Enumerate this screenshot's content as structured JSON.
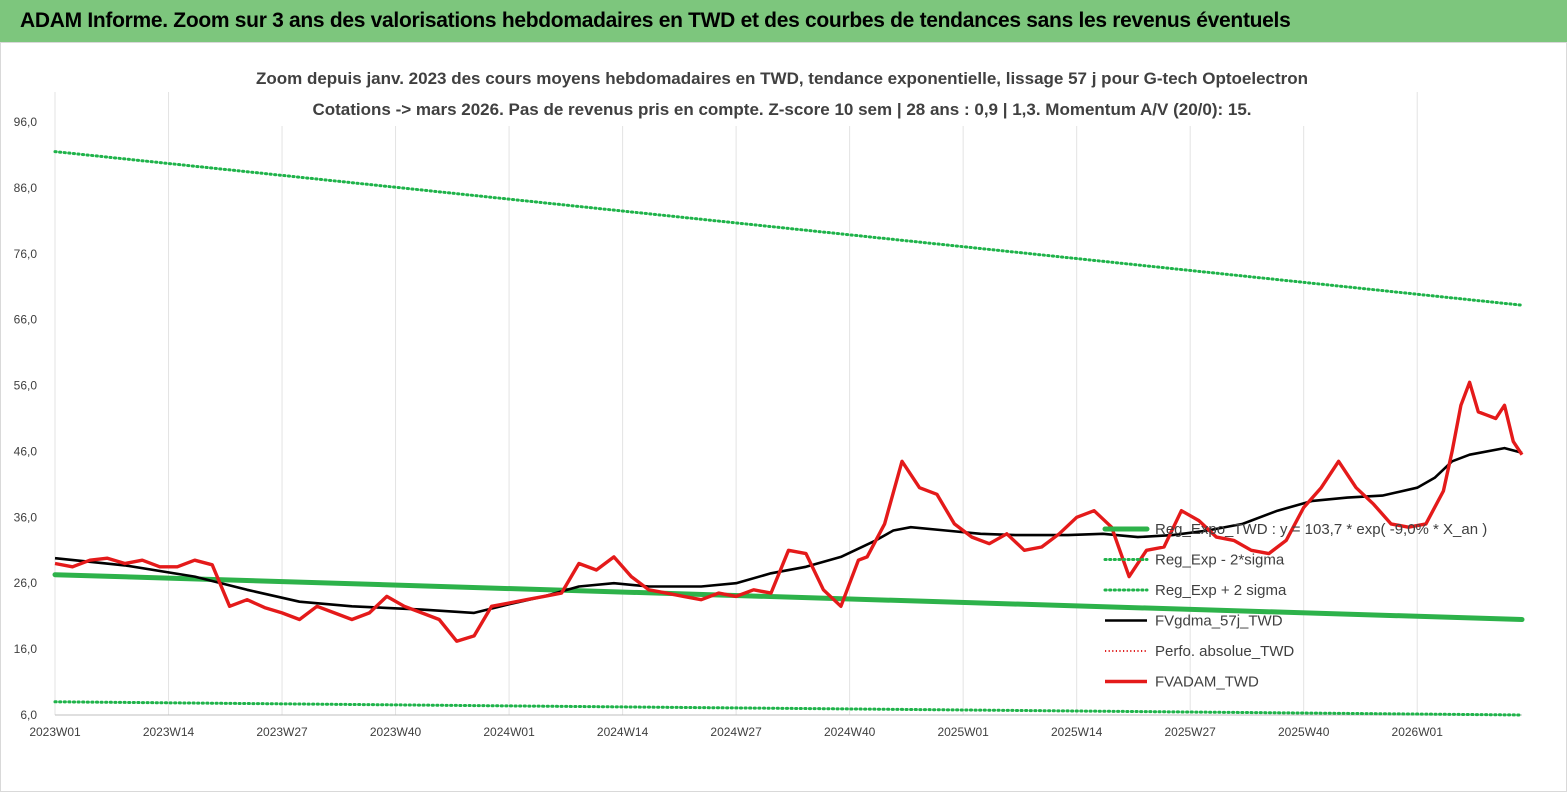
{
  "banner": {
    "title": "ADAM Informe. Zoom sur 3 ans des valorisations hebdomadaires en TWD et des courbes de tendances sans les revenus éventuels"
  },
  "colors": {
    "banner_bg": "#7dc67d",
    "trend": "#2db24a",
    "sigma_dotted": "#1fb34a",
    "fvgdma": "#000000",
    "perfo": "#e02020",
    "fvadam": "#e41a1a"
  },
  "chart_data": {
    "type": "line",
    "title": "Zoom depuis janv. 2023 des cours moyens hebdomadaires en TWD, tendance exponentielle, lissage 57 j pour G-tech Optoelectron",
    "subtitle": "Cotations -> mars 2026. Pas de revenus pris en compte. Z-score 10 sem  | 28 ans : 0,9 | 1,3. Momentum A/V (20/0): 15.",
    "x_ticks": [
      "2023W01",
      "2023W14",
      "2023W27",
      "2023W40",
      "2024W01",
      "2024W14",
      "2024W27",
      "2024W40",
      "2025W01",
      "2025W14",
      "2025W27",
      "2025W40",
      "2026W01"
    ],
    "y_ticks": [
      "96,0",
      "86,0",
      "76,0",
      "66,0",
      "56,0",
      "46,0",
      "36,0",
      "26,0",
      "16,0",
      "6,0"
    ],
    "ylim": [
      6,
      96
    ],
    "grid": "vertical",
    "legend_position": "right",
    "x_week_index_range": [
      0,
      168
    ],
    "series": [
      {
        "name": "Reg_Expo_TWD : y = 103,7 * exp( -9,0% *  X_an )",
        "style": "solid-thick",
        "points": [
          [
            0,
            27.3
          ],
          [
            168,
            20.5
          ]
        ]
      },
      {
        "name": "Reg_Exp - 2*sigma",
        "style": "dotted",
        "points": [
          [
            0,
            8.0
          ],
          [
            168,
            6.0
          ]
        ]
      },
      {
        "name": "Reg_Exp + 2 sigma",
        "style": "dotted",
        "points": [
          [
            0,
            91.5
          ],
          [
            168,
            68.2
          ]
        ]
      },
      {
        "name": "FVgdma_57j_TWD",
        "style": "solid",
        "points": [
          [
            0,
            29.8
          ],
          [
            8,
            28.7
          ],
          [
            16,
            27.0
          ],
          [
            22,
            25.0
          ],
          [
            28,
            23.2
          ],
          [
            34,
            22.5
          ],
          [
            42,
            22.0
          ],
          [
            48,
            21.5
          ],
          [
            52,
            22.8
          ],
          [
            56,
            24.0
          ],
          [
            60,
            25.5
          ],
          [
            64,
            26.0
          ],
          [
            68,
            25.5
          ],
          [
            74,
            25.5
          ],
          [
            78,
            26.0
          ],
          [
            82,
            27.5
          ],
          [
            86,
            28.5
          ],
          [
            90,
            30.0
          ],
          [
            94,
            32.5
          ],
          [
            96,
            34.0
          ],
          [
            98,
            34.5
          ],
          [
            102,
            34.0
          ],
          [
            106,
            33.5
          ],
          [
            110,
            33.3
          ],
          [
            116,
            33.3
          ],
          [
            120,
            33.5
          ],
          [
            124,
            33.0
          ],
          [
            128,
            33.3
          ],
          [
            132,
            34.0
          ],
          [
            136,
            35.0
          ],
          [
            140,
            37.0
          ],
          [
            144,
            38.5
          ],
          [
            148,
            39.0
          ],
          [
            152,
            39.3
          ],
          [
            156,
            40.5
          ],
          [
            158,
            42.0
          ],
          [
            160,
            44.5
          ],
          [
            162,
            45.5
          ],
          [
            166,
            46.5
          ],
          [
            168,
            45.8
          ]
        ]
      },
      {
        "name": "Perfo. absolue_TWD",
        "style": "dotted-red",
        "points": []
      },
      {
        "name": "FVADAM_TWD",
        "style": "solid-thick-red",
        "points": [
          [
            0,
            29.0
          ],
          [
            2,
            28.5
          ],
          [
            4,
            29.5
          ],
          [
            6,
            29.8
          ],
          [
            8,
            29.0
          ],
          [
            10,
            29.5
          ],
          [
            12,
            28.5
          ],
          [
            14,
            28.5
          ],
          [
            16,
            29.5
          ],
          [
            18,
            28.8
          ],
          [
            20,
            22.5
          ],
          [
            22,
            23.5
          ],
          [
            24,
            22.3
          ],
          [
            26,
            21.5
          ],
          [
            28,
            20.5
          ],
          [
            30,
            22.5
          ],
          [
            32,
            21.5
          ],
          [
            34,
            20.5
          ],
          [
            36,
            21.5
          ],
          [
            38,
            24.0
          ],
          [
            40,
            22.5
          ],
          [
            42,
            21.5
          ],
          [
            44,
            20.5
          ],
          [
            46,
            17.2
          ],
          [
            48,
            18.0
          ],
          [
            50,
            22.5
          ],
          [
            52,
            23.0
          ],
          [
            54,
            23.5
          ],
          [
            56,
            24.0
          ],
          [
            58,
            24.5
          ],
          [
            60,
            29.0
          ],
          [
            62,
            28.0
          ],
          [
            64,
            30.0
          ],
          [
            66,
            27.0
          ],
          [
            68,
            25.0
          ],
          [
            70,
            24.5
          ],
          [
            72,
            24.0
          ],
          [
            74,
            23.5
          ],
          [
            76,
            24.5
          ],
          [
            78,
            24.0
          ],
          [
            80,
            25.0
          ],
          [
            82,
            24.5
          ],
          [
            84,
            31.0
          ],
          [
            86,
            30.5
          ],
          [
            88,
            25.0
          ],
          [
            90,
            22.5
          ],
          [
            92,
            29.5
          ],
          [
            93,
            30.0
          ],
          [
            95,
            35.0
          ],
          [
            97,
            44.5
          ],
          [
            99,
            40.5
          ],
          [
            101,
            39.5
          ],
          [
            103,
            35.0
          ],
          [
            105,
            33.0
          ],
          [
            107,
            32.0
          ],
          [
            109,
            33.5
          ],
          [
            111,
            31.0
          ],
          [
            113,
            31.5
          ],
          [
            115,
            33.5
          ],
          [
            117,
            36.0
          ],
          [
            119,
            37.0
          ],
          [
            121,
            34.5
          ],
          [
            123,
            27.0
          ],
          [
            125,
            31.0
          ],
          [
            127,
            31.5
          ],
          [
            129,
            37.0
          ],
          [
            131,
            35.5
          ],
          [
            133,
            33.0
          ],
          [
            135,
            32.5
          ],
          [
            137,
            31.0
          ],
          [
            139,
            30.5
          ],
          [
            141,
            32.5
          ],
          [
            143,
            37.5
          ],
          [
            145,
            40.5
          ],
          [
            147,
            44.5
          ],
          [
            149,
            40.5
          ],
          [
            151,
            38.0
          ],
          [
            153,
            35.0
          ],
          [
            155,
            34.5
          ],
          [
            157,
            35.0
          ],
          [
            159,
            40.0
          ],
          [
            160,
            46.0
          ],
          [
            161,
            53.0
          ],
          [
            162,
            56.5
          ],
          [
            163,
            52.0
          ],
          [
            164,
            51.5
          ],
          [
            165,
            51.0
          ],
          [
            166,
            53.0
          ],
          [
            167,
            47.5
          ],
          [
            168,
            45.5
          ]
        ]
      }
    ]
  }
}
